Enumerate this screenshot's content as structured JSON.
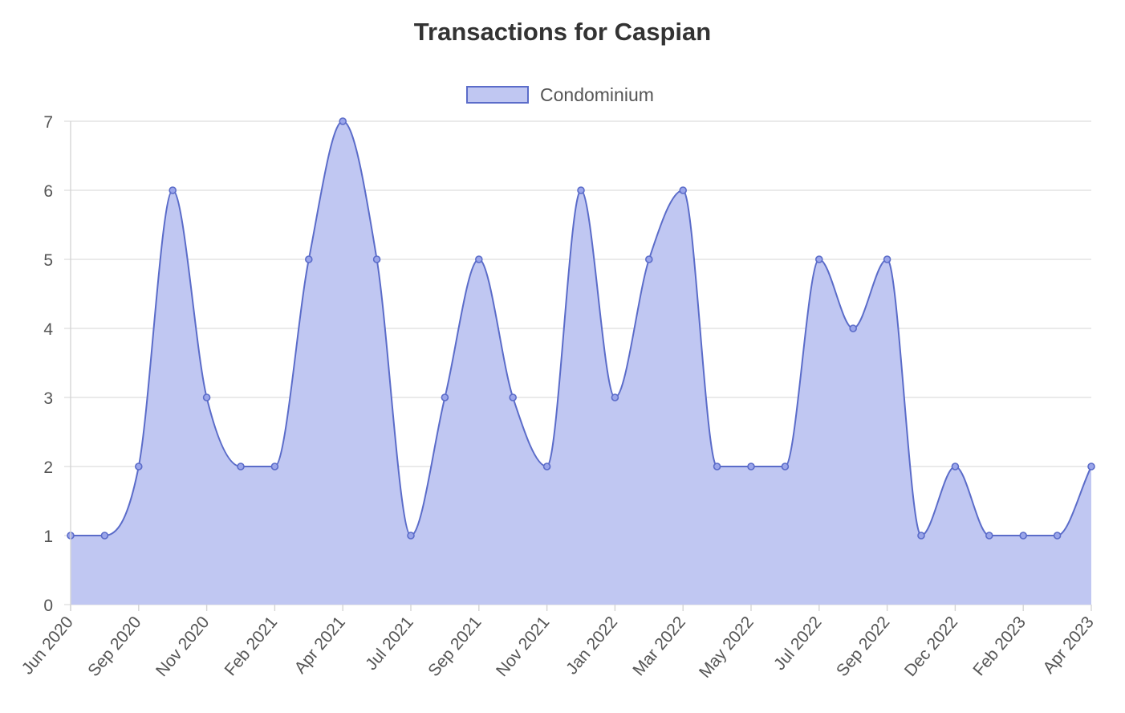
{
  "chart_data": {
    "type": "area",
    "title": "Transactions for Caspian",
    "xlabel": "",
    "ylabel": "",
    "ylim": [
      0,
      7
    ],
    "yticks": [
      0,
      1,
      2,
      3,
      4,
      5,
      6,
      7
    ],
    "grid": true,
    "legend_position": "top",
    "x_tick_labels": [
      "Jun 2020",
      "Sep 2020",
      "Nov 2020",
      "Feb 2021",
      "Apr 2021",
      "Jul 2021",
      "Sep 2021",
      "Nov 2021",
      "Jan 2022",
      "Mar 2022",
      "May 2022",
      "Jul 2022",
      "Sep 2022",
      "Dec 2022",
      "Feb 2023",
      "Apr 2023"
    ],
    "x_tick_every": 2,
    "series": [
      {
        "name": "Condominium",
        "color": "#5b6cc9",
        "fill": "#c0c7f2",
        "values": [
          1,
          1,
          2,
          6,
          3,
          2,
          2,
          5,
          7,
          5,
          1,
          3,
          5,
          3,
          2,
          6,
          3,
          5,
          6,
          2,
          2,
          2,
          5,
          4,
          5,
          1,
          2,
          1,
          1,
          1,
          2
        ]
      }
    ]
  }
}
